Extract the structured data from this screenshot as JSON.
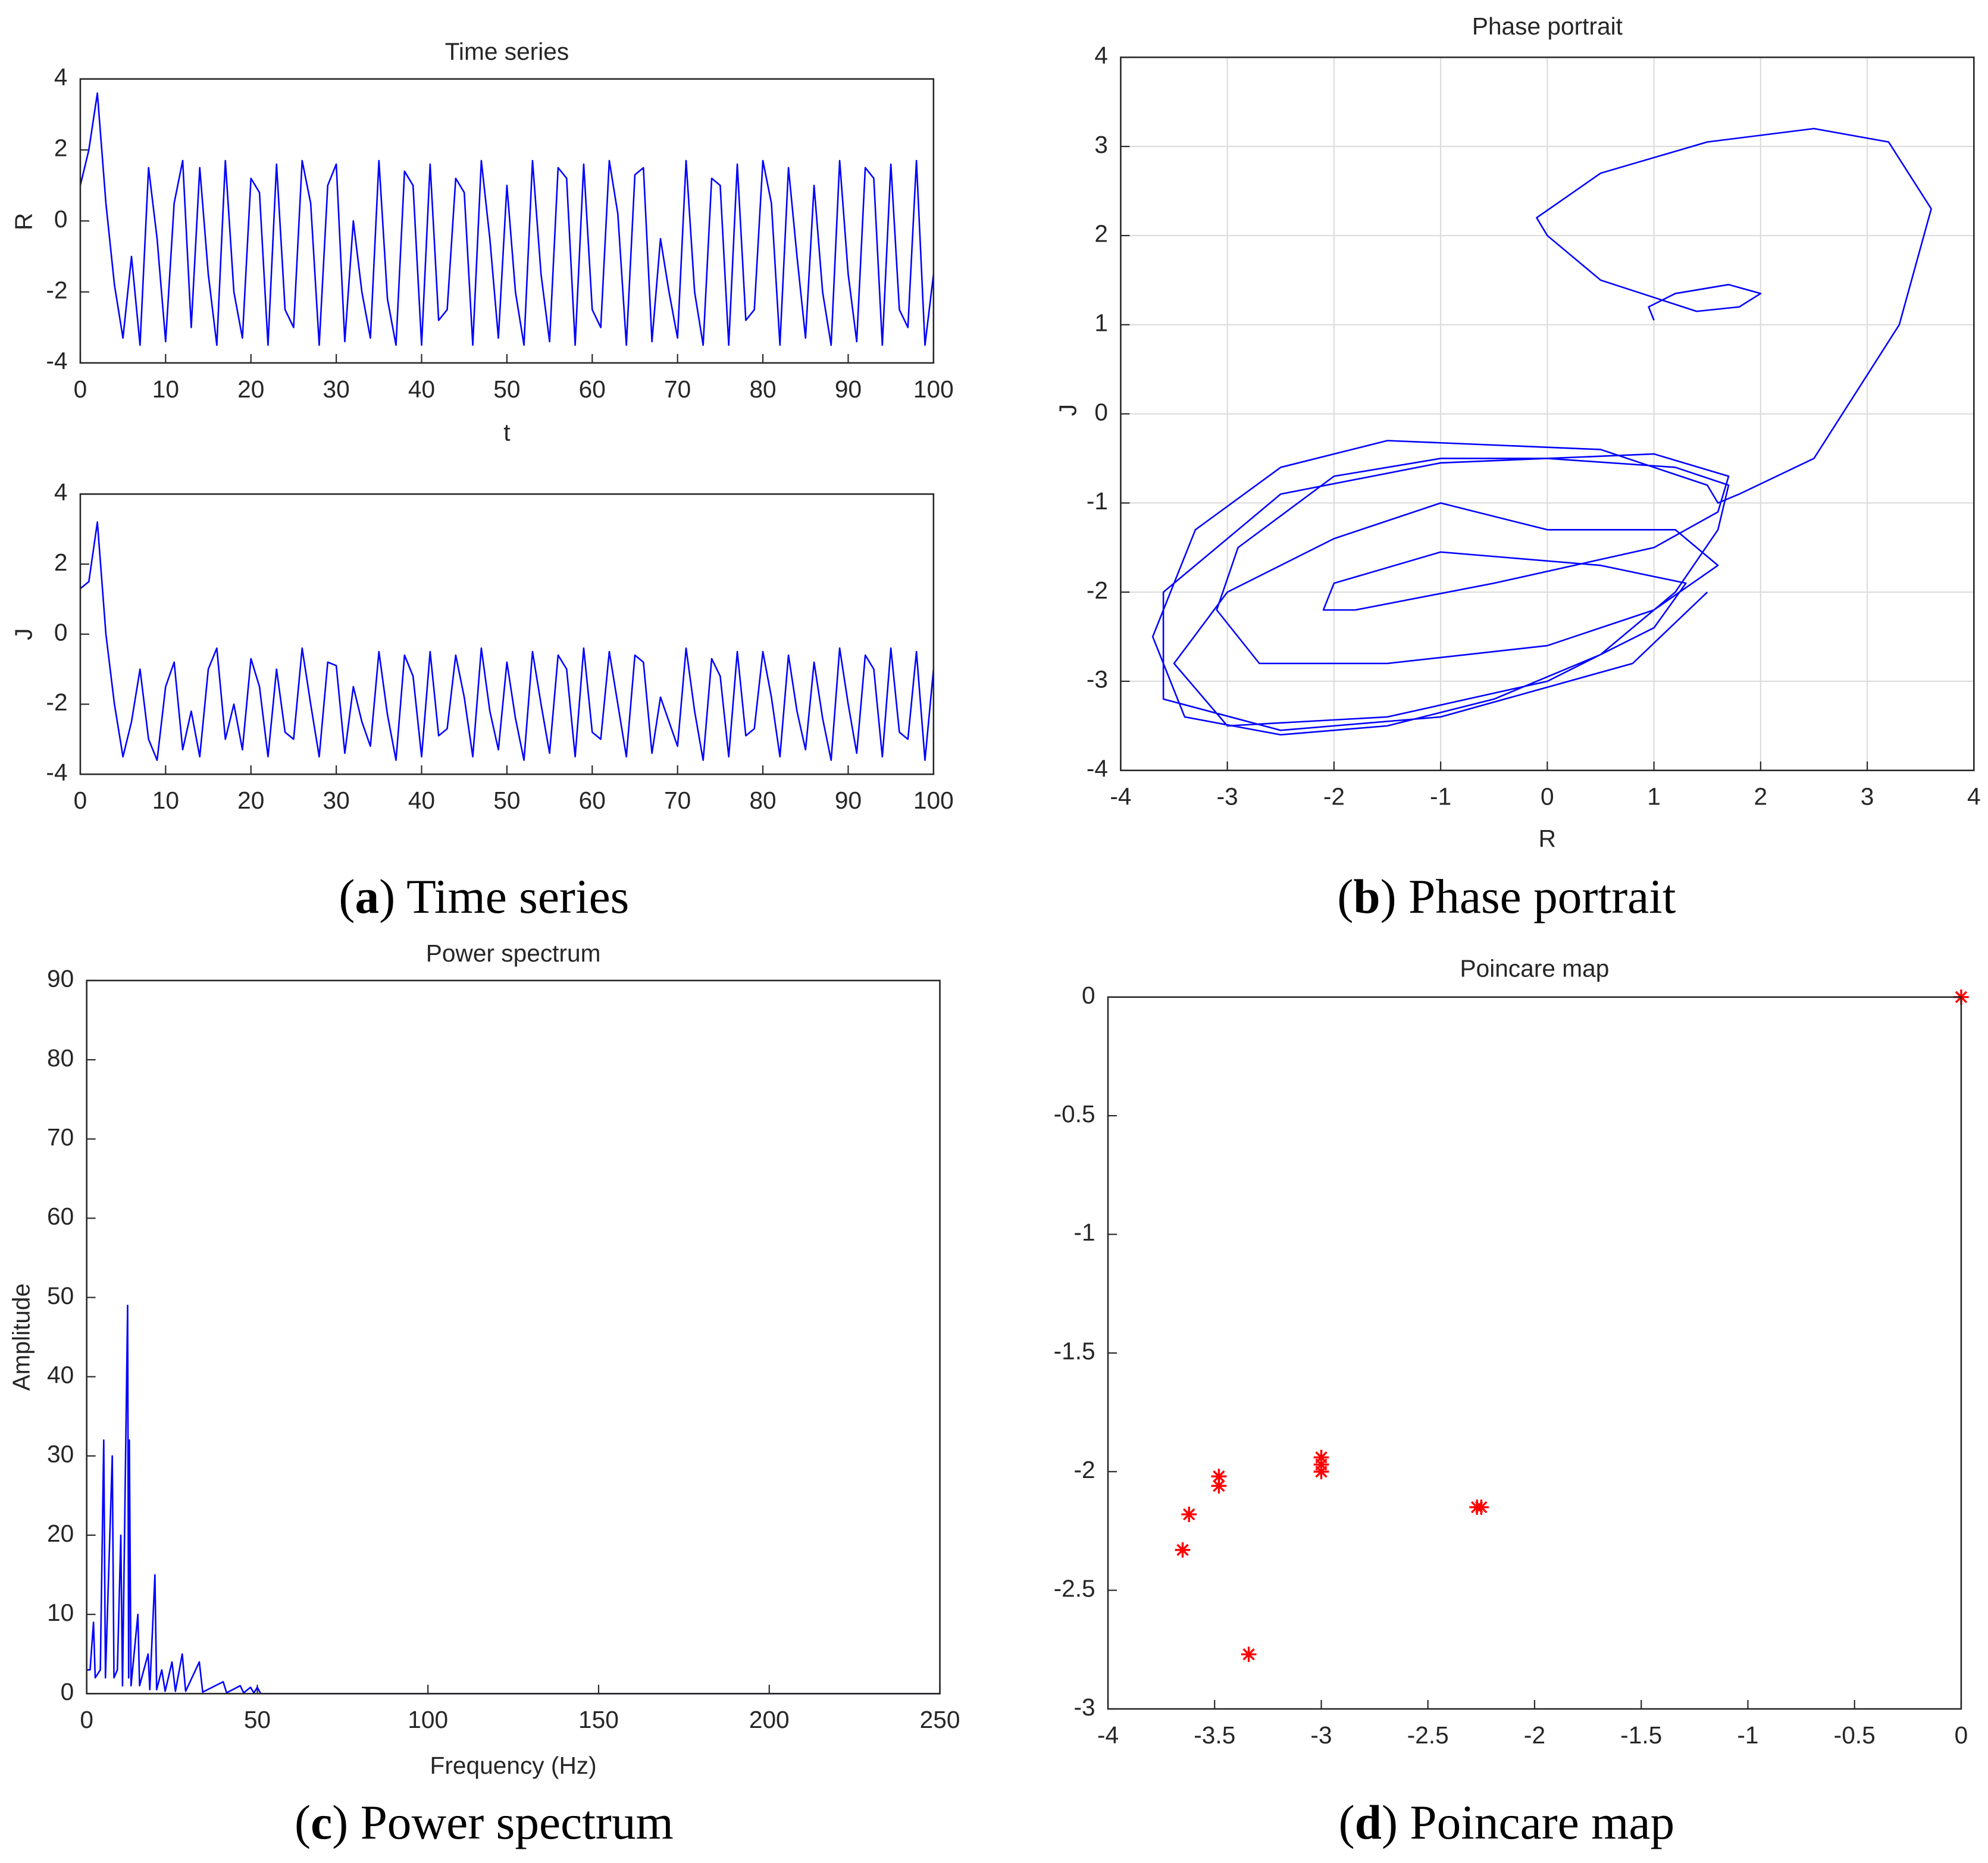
{
  "chart_data": [
    {
      "type": "line",
      "title": "Time series",
      "xlabel": "t",
      "ylabel": "R",
      "color": "#0000ff",
      "caption": [
        "(",
        "a",
        ") Time series"
      ],
      "x": [
        0,
        1,
        2,
        3,
        4,
        5,
        6,
        7,
        8,
        9,
        10,
        11,
        12,
        13,
        14,
        15,
        16,
        17,
        18,
        19,
        20,
        21,
        22,
        23,
        24,
        25,
        26,
        27,
        28,
        29,
        30,
        31,
        32,
        33,
        34,
        35,
        36,
        37,
        38,
        39,
        40,
        41,
        42,
        43,
        44,
        45,
        46,
        47,
        48,
        49,
        50,
        51,
        52,
        53,
        54,
        55,
        56,
        57,
        58,
        59,
        60,
        61,
        62,
        63,
        64,
        65,
        66,
        67,
        68,
        69,
        70,
        71,
        72,
        73,
        74,
        75,
        76,
        77,
        78,
        79,
        80,
        81,
        82,
        83,
        84,
        85,
        86,
        87,
        88,
        89,
        90,
        91,
        92,
        93,
        94,
        95,
        96,
        97,
        98,
        99,
        100
      ],
      "values": [
        1.0,
        2.0,
        3.6,
        0.5,
        -1.8,
        -3.3,
        -1.0,
        -3.5,
        1.5,
        -0.5,
        -3.4,
        0.5,
        1.7,
        -3.0,
        1.5,
        -1.5,
        -3.5,
        1.7,
        -2.0,
        -3.3,
        1.2,
        0.8,
        -3.5,
        1.6,
        -2.5,
        -3.0,
        1.7,
        0.5,
        -3.5,
        1.0,
        1.6,
        -3.4,
        0.0,
        -2.0,
        -3.3,
        1.7,
        -2.2,
        -3.5,
        1.4,
        1.0,
        -3.5,
        1.6,
        -2.8,
        -2.5,
        1.2,
        0.8,
        -3.5,
        1.7,
        -0.5,
        -3.3,
        1.0,
        -2.0,
        -3.5,
        1.7,
        -1.5,
        -3.4,
        1.5,
        1.2,
        -3.5,
        1.6,
        -2.5,
        -3.0,
        1.7,
        0.2,
        -3.5,
        1.3,
        1.5,
        -3.4,
        -0.5,
        -2.0,
        -3.3,
        1.7,
        -2.0,
        -3.5,
        1.2,
        1.0,
        -3.5,
        1.6,
        -2.8,
        -2.5,
        1.7,
        0.5,
        -3.5,
        1.5,
        -1.0,
        -3.3,
        1.0,
        -2.0,
        -3.5,
        1.7,
        -1.5,
        -3.4,
        1.5,
        1.2,
        -3.5,
        1.6,
        -2.5,
        -3.0,
        1.7,
        -3.5,
        -1.5
      ],
      "xlim": [
        0,
        100
      ],
      "xticks": [
        0,
        10,
        20,
        30,
        40,
        50,
        60,
        70,
        80,
        90,
        100
      ],
      "ylim": [
        -4,
        4
      ],
      "yticks": [
        -4,
        -2,
        0,
        2,
        4
      ],
      "grid": false
    },
    {
      "type": "line",
      "ylabel": "J",
      "color": "#0000ff",
      "x": [
        0,
        1,
        2,
        3,
        4,
        5,
        6,
        7,
        8,
        9,
        10,
        11,
        12,
        13,
        14,
        15,
        16,
        17,
        18,
        19,
        20,
        21,
        22,
        23,
        24,
        25,
        26,
        27,
        28,
        29,
        30,
        31,
        32,
        33,
        34,
        35,
        36,
        37,
        38,
        39,
        40,
        41,
        42,
        43,
        44,
        45,
        46,
        47,
        48,
        49,
        50,
        51,
        52,
        53,
        54,
        55,
        56,
        57,
        58,
        59,
        60,
        61,
        62,
        63,
        64,
        65,
        66,
        67,
        68,
        69,
        70,
        71,
        72,
        73,
        74,
        75,
        76,
        77,
        78,
        79,
        80,
        81,
        82,
        83,
        84,
        85,
        86,
        87,
        88,
        89,
        90,
        91,
        92,
        93,
        94,
        95,
        96,
        97,
        98,
        99,
        100
      ],
      "values": [
        1.3,
        1.5,
        3.2,
        0.0,
        -2.0,
        -3.5,
        -2.5,
        -1.0,
        -3.0,
        -3.6,
        -1.5,
        -0.8,
        -3.3,
        -2.2,
        -3.5,
        -1.0,
        -0.4,
        -3.0,
        -2.0,
        -3.3,
        -0.7,
        -1.5,
        -3.5,
        -1.0,
        -2.8,
        -3.0,
        -0.4,
        -2.0,
        -3.5,
        -0.8,
        -0.9,
        -3.4,
        -1.5,
        -2.5,
        -3.2,
        -0.5,
        -2.3,
        -3.6,
        -0.6,
        -1.2,
        -3.5,
        -0.5,
        -2.9,
        -2.7,
        -0.6,
        -1.8,
        -3.5,
        -0.4,
        -2.2,
        -3.3,
        -0.8,
        -2.4,
        -3.6,
        -0.5,
        -2.0,
        -3.4,
        -0.6,
        -1.0,
        -3.5,
        -0.4,
        -2.8,
        -3.0,
        -0.5,
        -2.0,
        -3.5,
        -0.6,
        -0.8,
        -3.4,
        -1.8,
        -2.5,
        -3.2,
        -0.4,
        -2.2,
        -3.6,
        -0.7,
        -1.2,
        -3.5,
        -0.5,
        -2.9,
        -2.7,
        -0.5,
        -1.8,
        -3.5,
        -0.6,
        -2.2,
        -3.3,
        -0.8,
        -2.4,
        -3.6,
        -0.4,
        -2.0,
        -3.4,
        -0.6,
        -1.0,
        -3.5,
        -0.4,
        -2.8,
        -3.0,
        -0.5,
        -3.6,
        -1.0
      ],
      "xlim": [
        0,
        100
      ],
      "xticks": [
        0,
        10,
        20,
        30,
        40,
        50,
        60,
        70,
        80,
        90,
        100
      ],
      "ylim": [
        -4,
        4
      ],
      "yticks": [
        -4,
        -2,
        0,
        2,
        4
      ],
      "grid": false
    },
    {
      "type": "line",
      "title": "Phase portrait",
      "xlabel": "R",
      "ylabel": "J",
      "color": "#0000ff",
      "caption": [
        "(",
        "b",
        ") Phase portrait"
      ],
      "x": [
        1,
        0.95,
        1.2,
        1.7,
        2.0,
        1.8,
        1.4,
        0.5,
        0,
        -0.1,
        0.5,
        1.5,
        2.5,
        3.2,
        3.6,
        3.3,
        2.5,
        1.8,
        1.6,
        1.5,
        0.5,
        -0.5,
        -1.5,
        -2.5,
        -3.3,
        -3.7,
        -3.4,
        -2.5,
        -1.5,
        -0.5,
        0.5,
        1.2,
        1.6,
        1.7,
        1.2,
        0,
        -1,
        -2,
        -2.9,
        -3.1,
        -2.7,
        -1.5,
        0,
        1,
        1.6,
        1.2,
        0,
        -1,
        -2,
        -3.0,
        -3.5,
        -3.0,
        -1.5,
        0,
        1.0,
        1.3,
        0.5,
        -1,
        -2,
        -2.1,
        -1.8,
        -0.5,
        1,
        1.6,
        1.7,
        1,
        -1,
        -2.5,
        -3.6,
        -3.6,
        -2.5,
        -1,
        0.8,
        1.5
      ],
      "values": [
        1.05,
        1.2,
        1.35,
        1.45,
        1.35,
        1.2,
        1.15,
        1.5,
        2,
        2.2,
        2.7,
        3.05,
        3.2,
        3.05,
        2.3,
        1.0,
        -0.5,
        -0.9,
        -1.0,
        -0.8,
        -0.4,
        -0.35,
        -0.3,
        -0.6,
        -1.3,
        -2.5,
        -3.4,
        -3.6,
        -3.5,
        -3.2,
        -2.7,
        -2.0,
        -1.3,
        -0.8,
        -0.6,
        -0.5,
        -0.5,
        -0.7,
        -1.5,
        -2.2,
        -2.8,
        -2.8,
        -2.6,
        -2.2,
        -1.7,
        -1.3,
        -1.3,
        -1.0,
        -1.4,
        -2.0,
        -2.8,
        -3.5,
        -3.4,
        -3.0,
        -2.4,
        -1.9,
        -1.7,
        -1.55,
        -1.9,
        -2.2,
        -2.2,
        -1.9,
        -1.5,
        -1.1,
        -0.7,
        -0.45,
        -0.55,
        -0.9,
        -2.0,
        -3.2,
        -3.55,
        -3.4,
        -2.8,
        -2.0
      ],
      "xlim": [
        -4,
        4
      ],
      "xticks": [
        -4,
        -3,
        -2,
        -1,
        0,
        1,
        2,
        3,
        4
      ],
      "ylim": [
        -4,
        4
      ],
      "yticks": [
        -4,
        -3,
        -2,
        -1,
        0,
        1,
        2,
        3,
        4
      ],
      "grid": true
    },
    {
      "type": "line",
      "title": "Power spectrum",
      "xlabel": "Frequency (Hz)",
      "ylabel": "Amplitude",
      "color": "#0000ff",
      "caption": [
        "(",
        "c",
        ") Power spectrum"
      ],
      "x": [
        0,
        1,
        2,
        2.5,
        4,
        5,
        5.5,
        7.5,
        8,
        9,
        10,
        10.5,
        12,
        12.3,
        12.5,
        13,
        15,
        15.5,
        18,
        18.5,
        20,
        20.5,
        22,
        23,
        25,
        26,
        28,
        29,
        33,
        34,
        40,
        41,
        45,
        46,
        48,
        49,
        50,
        51,
        250
      ],
      "values": [
        3,
        3,
        9,
        2,
        3,
        32,
        2,
        30,
        2,
        3,
        20,
        1,
        49,
        2,
        32,
        1,
        10,
        1,
        5,
        0.5,
        15,
        0.5,
        3,
        0.3,
        4,
        0.3,
        5,
        0.3,
        4,
        0.2,
        1.5,
        0.1,
        1,
        0.1,
        0.8,
        0.1,
        0.8,
        0,
        0
      ],
      "xlim": [
        0,
        250
      ],
      "xticks": [
        0,
        50,
        100,
        150,
        200,
        250
      ],
      "ylim": [
        0,
        90
      ],
      "yticks": [
        0,
        10,
        20,
        30,
        40,
        50,
        60,
        70,
        80,
        90
      ],
      "grid": false
    },
    {
      "type": "scatter",
      "title": "Poincare map",
      "color": "#ff0000",
      "marker": "*",
      "caption": [
        "(",
        "d",
        ") Poincare map"
      ],
      "x": [
        0,
        -3.65,
        -3.62,
        -3.48,
        -3.48,
        -3.34,
        -3.0,
        -3.0,
        -3.0,
        -2.25,
        -2.27
      ],
      "values": [
        0,
        -2.33,
        -2.18,
        -2.02,
        -2.06,
        -2.77,
        -1.94,
        -1.97,
        -2.0,
        -2.15,
        -2.15
      ],
      "xlim": [
        -4,
        0
      ],
      "xticks": [
        -4,
        -3.5,
        -3,
        -2.5,
        -2,
        -1.5,
        -1,
        -0.5,
        0
      ],
      "ylim": [
        -3,
        0
      ],
      "yticks": [
        -3,
        -2.5,
        -2,
        -1.5,
        -1,
        -0.5,
        0
      ],
      "grid": false
    }
  ]
}
